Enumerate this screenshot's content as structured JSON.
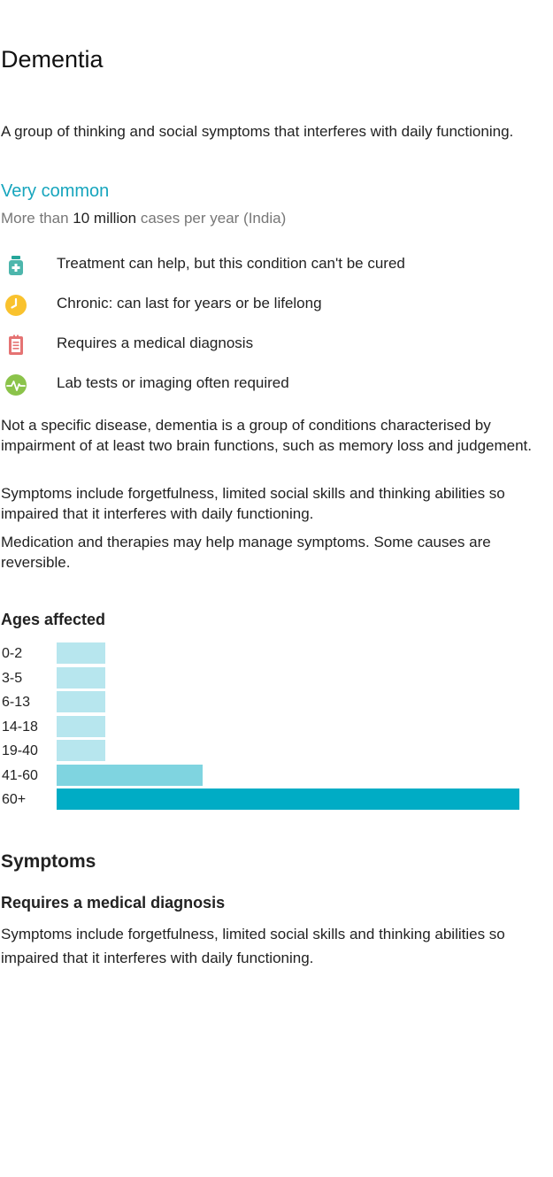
{
  "condition": {
    "title": "Dementia",
    "summary": "A group of thinking and social symptoms that interferes with daily functioning.",
    "frequency": "Very common",
    "cases_prefix": "More than",
    "cases_highlight": "10 million",
    "cases_suffix": "cases per year (India)"
  },
  "facts": [
    {
      "icon": "medicine-bottle-icon",
      "text": "Treatment can help, but this condition can't be cured"
    },
    {
      "icon": "clock-icon",
      "text": "Chronic: can last for years or be lifelong"
    },
    {
      "icon": "clipboard-icon",
      "text": "Requires a medical diagnosis"
    },
    {
      "icon": "pulse-icon",
      "text": "Lab tests or imaging often required"
    }
  ],
  "description": [
    "Not a specific disease, dementia is a group of conditions characterised by impairment of at least two brain functions, such as memory loss and judgement.",
    "Symptoms include forgetfulness, limited social skills and thinking abilities so impaired that it interferes with daily functioning.",
    "Medication and therapies may help manage symptoms. Some causes are reversible."
  ],
  "ages_section": {
    "title": "Ages affected"
  },
  "chart_data": {
    "type": "bar",
    "orientation": "horizontal",
    "title": "Ages affected",
    "categories": [
      "0-2",
      "3-5",
      "6-13",
      "14-18",
      "19-40",
      "41-60",
      "60+"
    ],
    "values": [
      0.105,
      0.105,
      0.105,
      0.105,
      0.105,
      0.315,
      1.0
    ],
    "colors": [
      "#b7e6ee",
      "#b7e6ee",
      "#b7e6ee",
      "#b7e6ee",
      "#b7e6ee",
      "#7fd4e0",
      "#00acc5"
    ],
    "grid": false,
    "legend": "none"
  },
  "symptoms": {
    "title": "Symptoms",
    "subtitle": "Requires a medical diagnosis",
    "text": "Symptoms include forgetfulness, limited social skills and thinking abilities so impaired that it interferes with daily functioning."
  },
  "colors": {
    "accent": "#16a5bd",
    "muted_text": "#777777",
    "icon_green": "#8bc34a",
    "icon_teal": "#26a69a",
    "icon_yellow": "#f9c22e",
    "icon_red": "#e57373"
  }
}
